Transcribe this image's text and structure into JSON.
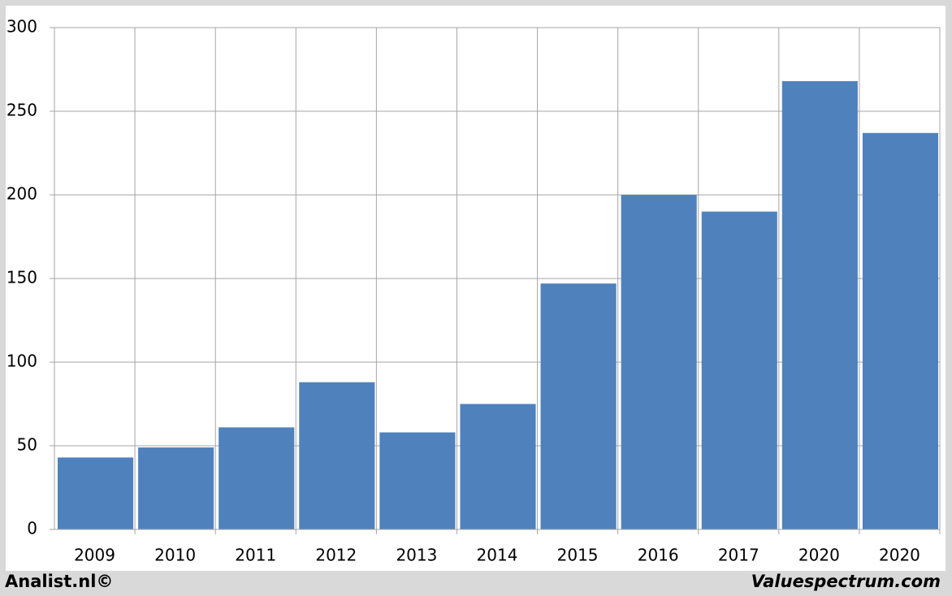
{
  "chart_data": {
    "type": "bar",
    "categories": [
      "2009",
      "2010",
      "2011",
      "2012",
      "2013",
      "2014",
      "2015",
      "2016",
      "2017",
      "2020",
      "2020"
    ],
    "values": [
      43,
      49,
      61,
      88,
      58,
      75,
      147,
      200,
      190,
      268,
      237
    ],
    "color": "#4f81bd",
    "ylim": [
      0,
      300
    ],
    "yticks": [
      0,
      50,
      100,
      150,
      200,
      250,
      300
    ],
    "grid": true,
    "footer_left": "Analist.nl©",
    "footer_right": "Valuespectrum.com"
  }
}
